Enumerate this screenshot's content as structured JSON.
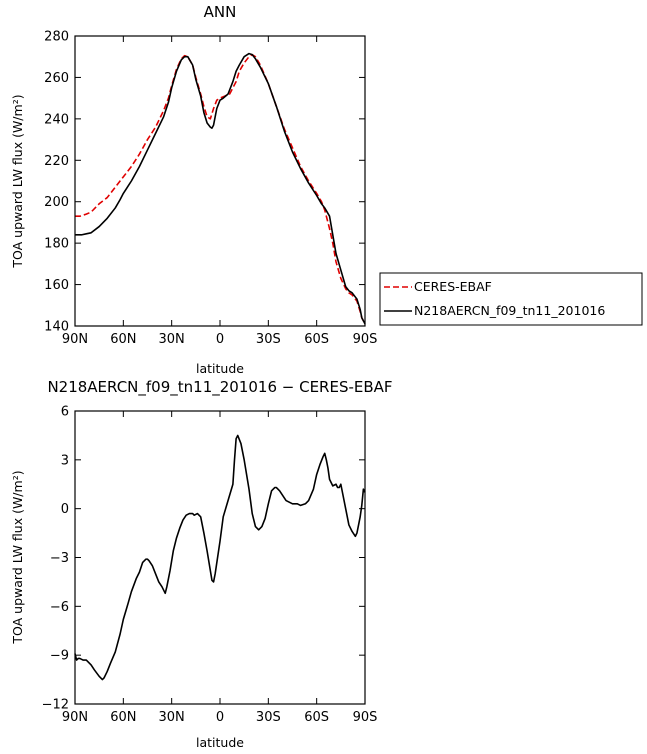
{
  "chart_data": [
    {
      "type": "line",
      "title": "ANN",
      "xlabel": "latitude",
      "ylabel": "TOA upward LW flux (W/m²)",
      "xlim": [
        90,
        -90
      ],
      "ylim": [
        140,
        280
      ],
      "xticks": [
        90,
        60,
        30,
        0,
        -30,
        -60,
        -90
      ],
      "xtick_labels": [
        "90N",
        "60N",
        "30N",
        "0",
        "30S",
        "60S",
        "90S"
      ],
      "yticks": [
        140,
        160,
        180,
        200,
        220,
        240,
        260,
        280
      ],
      "ytick_labels": [
        "140",
        "160",
        "180",
        "200",
        "220",
        "240",
        "260",
        "280"
      ],
      "legend": "right",
      "series": [
        {
          "name": "CERES-EBAF",
          "color": "#e00000",
          "dash": "dashed",
          "x": [
            90,
            87,
            83,
            80,
            75,
            70,
            65,
            60,
            55,
            50,
            45,
            40,
            35,
            32,
            30,
            27,
            24,
            22,
            20,
            17,
            15,
            12,
            10,
            8,
            6,
            4,
            2,
            0,
            -3,
            -6,
            -8,
            -10,
            -12,
            -15,
            -18,
            -20,
            -22,
            -25,
            -30,
            -35,
            -40,
            -45,
            -50,
            -55,
            -60,
            -63,
            -65,
            -68,
            -70,
            -72,
            -75,
            -78,
            -80,
            -82,
            -85,
            -87,
            -88,
            -90
          ],
          "y": [
            193,
            193,
            194,
            195,
            199,
            202,
            207,
            212,
            217,
            223,
            230,
            236,
            244,
            250,
            256,
            264,
            269,
            270.5,
            270,
            266,
            260,
            252,
            246,
            241,
            240,
            245,
            249,
            250,
            251,
            252,
            255,
            258,
            263,
            267,
            270,
            271,
            270,
            266,
            257,
            246,
            235,
            226,
            217,
            210,
            204,
            200,
            196,
            187,
            180,
            171,
            163,
            158,
            156,
            155,
            152,
            147,
            144,
            141
          ]
        },
        {
          "name": "N218AERCN_f09_tn11_201016",
          "color": "#000000",
          "dash": "solid",
          "x": [
            90,
            88,
            86,
            83,
            80,
            75,
            70,
            65,
            62,
            60,
            55,
            50,
            45,
            40,
            35,
            32,
            30,
            27,
            24,
            22,
            20,
            17,
            15,
            12,
            10,
            8,
            6,
            5,
            4,
            2,
            0,
            -2,
            -5,
            -8,
            -10,
            -12,
            -15,
            -18,
            -20,
            -22,
            -25,
            -30,
            -35,
            -40,
            -45,
            -50,
            -55,
            -60,
            -63,
            -65,
            -68,
            -70,
            -72,
            -75,
            -78,
            -80,
            -82,
            -85,
            -87,
            -88,
            -90
          ],
          "y": [
            184,
            184,
            184,
            184.5,
            185,
            188,
            192,
            197,
            201,
            204,
            210,
            217,
            225,
            233,
            241,
            248,
            255,
            263,
            268.5,
            270,
            270,
            266,
            259,
            251,
            243,
            238,
            236,
            235.5,
            237,
            245,
            249,
            250,
            252,
            258,
            263,
            266,
            270,
            271.5,
            271,
            269,
            265,
            257,
            246,
            234,
            224,
            216,
            209,
            203,
            199,
            197,
            193,
            184,
            175,
            167,
            159,
            157,
            156,
            153,
            148,
            144,
            141
          ]
        }
      ]
    },
    {
      "type": "line",
      "title": "N218AERCN_f09_tn11_201016 − CERES-EBAF",
      "xlabel": "latitude",
      "ylabel": "TOA upward LW flux (W/m²)",
      "xlim": [
        90,
        -90
      ],
      "ylim": [
        -12,
        6
      ],
      "xticks": [
        90,
        60,
        30,
        0,
        -30,
        -60,
        -90
      ],
      "xtick_labels": [
        "90N",
        "60N",
        "30N",
        "0",
        "30S",
        "60S",
        "90S"
      ],
      "yticks": [
        -12,
        -9,
        -6,
        -3,
        0,
        3,
        6
      ],
      "ytick_labels": [
        "−12",
        "−9",
        "−6",
        "−3",
        "0",
        "3",
        "6"
      ],
      "series": [
        {
          "color": "#000000",
          "dash": "solid",
          "x": [
            90,
            89,
            88,
            87,
            85,
            83,
            80,
            78,
            75,
            73,
            72,
            70,
            68,
            65,
            62,
            60,
            57,
            55,
            52,
            50,
            48,
            46,
            45,
            44,
            42,
            40,
            38,
            36,
            35,
            34,
            33,
            31,
            29,
            27,
            25,
            23,
            21,
            19,
            17,
            16,
            14,
            12,
            10,
            8,
            6,
            5,
            4,
            3,
            0,
            -2,
            -5,
            -8,
            -9,
            -10,
            -11,
            -13,
            -15,
            -18,
            -20,
            -22,
            -24,
            -26,
            -28,
            -30,
            -32,
            -34,
            -35,
            -37,
            -39,
            -41,
            -43,
            -45,
            -48,
            -50,
            -53,
            -55,
            -58,
            -60,
            -62,
            -64,
            -65,
            -66,
            -67,
            -68,
            -70,
            -72,
            -73,
            -74,
            -75,
            -76,
            -78,
            -80,
            -82,
            -84,
            -85,
            -86,
            -87,
            -88,
            -89,
            -90
          ],
          "y": [
            -8.9,
            -9.3,
            -9.2,
            -9.2,
            -9.3,
            -9.3,
            -9.6,
            -9.9,
            -10.3,
            -10.5,
            -10.4,
            -10.0,
            -9.5,
            -8.8,
            -7.7,
            -6.8,
            -5.8,
            -5.1,
            -4.3,
            -3.9,
            -3.3,
            -3.1,
            -3.1,
            -3.2,
            -3.5,
            -4.0,
            -4.5,
            -4.8,
            -5.0,
            -5.2,
            -4.8,
            -3.8,
            -2.6,
            -1.8,
            -1.2,
            -0.7,
            -0.4,
            -0.3,
            -0.3,
            -0.4,
            -0.3,
            -0.5,
            -1.5,
            -2.6,
            -3.8,
            -4.4,
            -4.5,
            -4.0,
            -2.0,
            -0.5,
            0.5,
            1.5,
            3.0,
            4.3,
            4.5,
            4.0,
            3.0,
            1.2,
            -0.3,
            -1.1,
            -1.3,
            -1.1,
            -0.6,
            0.3,
            1.1,
            1.3,
            1.3,
            1.1,
            0.8,
            0.5,
            0.4,
            0.3,
            0.3,
            0.2,
            0.3,
            0.5,
            1.2,
            2.1,
            2.7,
            3.2,
            3.4,
            3.0,
            2.5,
            1.8,
            1.4,
            1.5,
            1.3,
            1.3,
            1.5,
            1.0,
            0.0,
            -1.0,
            -1.4,
            -1.7,
            -1.5,
            -1.0,
            -0.5,
            0.2,
            1.2,
            1.0
          ]
        }
      ]
    }
  ]
}
